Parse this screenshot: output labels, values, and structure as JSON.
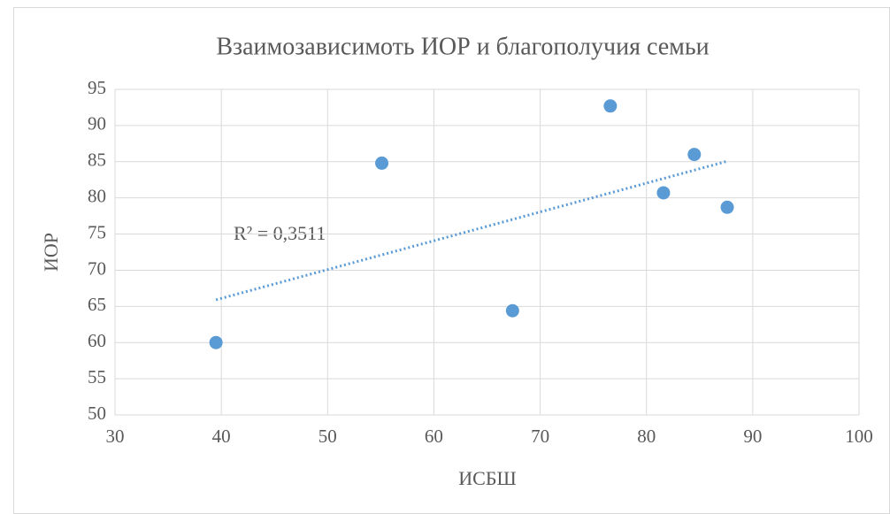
{
  "chart_data": {
    "type": "scatter",
    "title": "Взаимозависимоть ИОР и  благополучия семьи",
    "xlabel": "ИСБШ",
    "ylabel": "ИОР",
    "annotation": "R² = 0,3511",
    "trendline": "linear",
    "series": [
      {
        "color": "#5b9bd5",
        "x": [
          39.5,
          55.1,
          67.4,
          76.6,
          81.6,
          84.5,
          87.6
        ],
        "values": [
          60,
          84.8,
          64.4,
          92.7,
          80.7,
          86,
          78.7
        ]
      }
    ],
    "xlim": [
      30,
      100
    ],
    "xticks": [
      30,
      40,
      50,
      60,
      70,
      80,
      90,
      100
    ],
    "ylim": [
      50,
      95
    ],
    "yticks": [
      50,
      55,
      60,
      65,
      70,
      75,
      80,
      85,
      90,
      95
    ],
    "grid": true
  }
}
